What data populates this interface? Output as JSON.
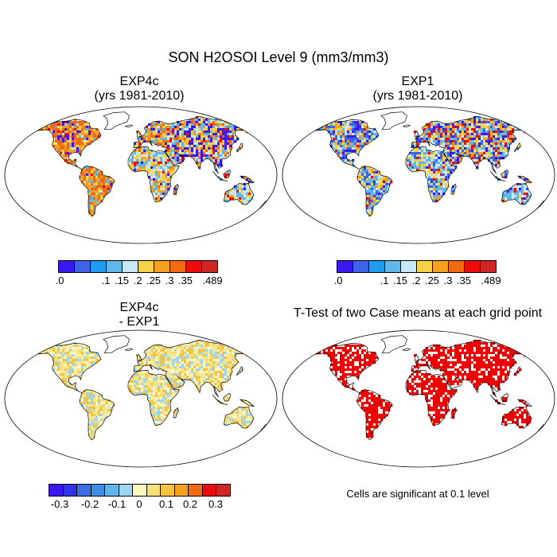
{
  "title": "SON H2OSOI Level 9 (mm3/mm3)",
  "panels": {
    "exp4c": {
      "title_line1": "EXP4c",
      "title_line2": "(yrs 1981-2010)"
    },
    "exp1": {
      "title_line1": "EXP1",
      "title_line2": "(yrs 1981-2010)"
    },
    "diff": {
      "title_line1": "EXP4c",
      "title_line2": "- EXP1"
    },
    "ttest": {
      "title_line1": "T-Test of two Case means at each grid point"
    }
  },
  "colorbars": {
    "absolute": {
      "colors": [
        "#3a1af0",
        "#3f63e8",
        "#1f9bf0",
        "#5fb8e8",
        "#c9e8f5",
        "#f5d24a",
        "#f5a020",
        "#ef6a10",
        "#ec0c0c",
        "#d02525"
      ],
      "labels": [
        ".0",
        ".1",
        ".15",
        ".2",
        ".25",
        ".3",
        ".35",
        ".489"
      ]
    },
    "difference": {
      "colors": [
        "#3a1af0",
        "#3232e6",
        "#3d6ee6",
        "#3f8ee6",
        "#5fb4ea",
        "#9fd4ee",
        "#fcf7bd",
        "#f7e07a",
        "#f5c242",
        "#f5a020",
        "#ef6a10",
        "#ec0c0c",
        "#d02525"
      ],
      "labels": [
        "-0.3",
        "-0.2",
        "-0.1",
        "0",
        "0.1",
        "0.2",
        "0.3"
      ]
    }
  },
  "ttest_note": "Cells are significant at 0.1 level",
  "map_colors": {
    "exp4c": [
      "#f5d24a",
      "#f5a020",
      "#ef6a10",
      "#5fb8e8",
      "#c9e8f5",
      "#3a1af0",
      "#ec0c0c"
    ],
    "exp1": [
      "#5fb8e8",
      "#c9e8f5",
      "#3f63e8",
      "#f5d24a",
      "#f5a020",
      "#3a1af0",
      "#ec0c0c"
    ],
    "diff": [
      "#fcf7bd",
      "#f7e07a",
      "#f5e89a",
      "#9fd4ee",
      "#f5c242"
    ],
    "ttest": [
      "#ee0000",
      "#ee0000",
      "#ee0000",
      "#ffffff"
    ]
  }
}
